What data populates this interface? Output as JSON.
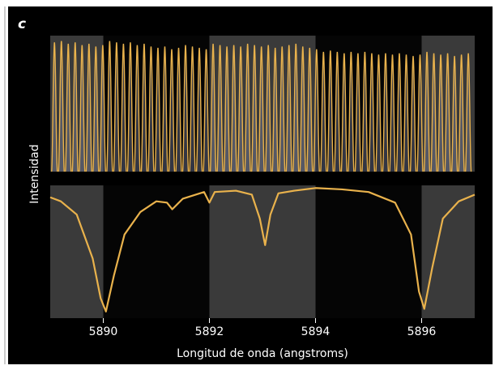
{
  "label": "c",
  "chart_data": [
    {
      "type": "comb",
      "ylabel": "Intensidad",
      "color": "#e9b24c",
      "xlim": [
        5889,
        5897
      ],
      "ylim": [
        0,
        1
      ],
      "x": [
        5889.08,
        5889.21,
        5889.34,
        5889.47,
        5889.6,
        5889.73,
        5889.86,
        5889.99,
        5890.12,
        5890.25,
        5890.38,
        5890.51,
        5890.64,
        5890.77,
        5890.9,
        5891.03,
        5891.16,
        5891.29,
        5891.42,
        5891.55,
        5891.68,
        5891.81,
        5891.94,
        5892.07,
        5892.2,
        5892.33,
        5892.46,
        5892.59,
        5892.72,
        5892.85,
        5892.98,
        5893.11,
        5893.24,
        5893.37,
        5893.5,
        5893.63,
        5893.76,
        5893.89,
        5894.02,
        5894.15,
        5894.28,
        5894.41,
        5894.54,
        5894.67,
        5894.8,
        5894.93,
        5895.06,
        5895.19,
        5895.32,
        5895.45,
        5895.58,
        5895.71,
        5895.84,
        5895.97,
        5896.1,
        5896.23,
        5896.36,
        5896.49,
        5896.62,
        5896.75,
        5896.88
      ],
      "values": [
        0.95,
        0.96,
        0.94,
        0.95,
        0.93,
        0.94,
        0.92,
        0.93,
        0.96,
        0.95,
        0.94,
        0.95,
        0.93,
        0.94,
        0.92,
        0.91,
        0.92,
        0.9,
        0.91,
        0.93,
        0.92,
        0.91,
        0.9,
        0.94,
        0.93,
        0.92,
        0.93,
        0.92,
        0.94,
        0.93,
        0.92,
        0.93,
        0.91,
        0.92,
        0.93,
        0.94,
        0.92,
        0.91,
        0.9,
        0.88,
        0.89,
        0.88,
        0.87,
        0.88,
        0.87,
        0.88,
        0.87,
        0.86,
        0.87,
        0.86,
        0.87,
        0.86,
        0.85,
        0.86,
        0.88,
        0.87,
        0.86,
        0.87,
        0.85,
        0.86,
        0.87
      ]
    },
    {
      "type": "line",
      "xlabel": "Longitud de onda (angstroms)",
      "color": "#e9b24c",
      "xlim": [
        5889,
        5897
      ],
      "ylim": [
        0,
        1
      ],
      "xticks": [
        5890,
        5892,
        5894,
        5896
      ],
      "x": [
        5889.0,
        5889.2,
        5889.5,
        5889.8,
        5889.95,
        5890.05,
        5890.2,
        5890.4,
        5890.7,
        5891.0,
        5891.2,
        5891.3,
        5891.4,
        5891.5,
        5891.9,
        5892.0,
        5892.1,
        5892.5,
        5892.8,
        5892.95,
        5893.05,
        5893.15,
        5893.3,
        5893.6,
        5894.0,
        5894.5,
        5895.0,
        5895.5,
        5895.8,
        5895.95,
        5896.05,
        5896.2,
        5896.4,
        5896.7,
        5897.0
      ],
      "values": [
        0.91,
        0.88,
        0.78,
        0.45,
        0.15,
        0.05,
        0.32,
        0.63,
        0.8,
        0.88,
        0.87,
        0.82,
        0.86,
        0.9,
        0.95,
        0.87,
        0.95,
        0.96,
        0.93,
        0.75,
        0.55,
        0.78,
        0.94,
        0.96,
        0.98,
        0.97,
        0.95,
        0.87,
        0.63,
        0.2,
        0.07,
        0.38,
        0.75,
        0.88,
        0.93
      ]
    }
  ]
}
